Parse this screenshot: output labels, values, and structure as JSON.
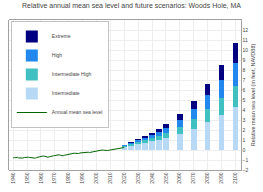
{
  "chart_data": {
    "type": "bar",
    "title": "Relative annual mean sea level and future scenarios: Woods Hole, MA",
    "ylabel": "Relative mean sea level (in feet, NAVD88)",
    "stacked": true,
    "x": [
      2020,
      2025,
      2030,
      2035,
      2040,
      2045,
      2050,
      2060,
      2070,
      2080,
      2090,
      2100
    ],
    "series": [
      {
        "name": "Intermediate",
        "color": "#b8d9f5",
        "values": [
          0.3,
          0.45,
          0.6,
          0.75,
          0.9,
          1.05,
          1.2,
          1.6,
          2.1,
          2.8,
          3.5,
          4.3
        ]
      },
      {
        "name": "Intermediate High",
        "color": "#40c0c0",
        "values": [
          0.1,
          0.15,
          0.2,
          0.25,
          0.35,
          0.4,
          0.5,
          0.7,
          1.0,
          1.3,
          1.7,
          2.1
        ]
      },
      {
        "name": "High",
        "color": "#2288ee",
        "values": [
          0.1,
          0.1,
          0.2,
          0.25,
          0.3,
          0.4,
          0.5,
          0.7,
          1.0,
          1.4,
          1.8,
          2.3
        ]
      },
      {
        "name": "Extreme",
        "color": "#000080",
        "values": [
          0.05,
          0.1,
          0.1,
          0.15,
          0.2,
          0.3,
          0.4,
          0.6,
          0.8,
          1.1,
          1.5,
          2.0
        ]
      },
      {
        "name": "Annual mean sea level",
        "type": "line",
        "color": "darkgreen",
        "x": [
          1940,
          1941,
          1942,
          1943,
          1944,
          1945,
          1946,
          1947,
          1948,
          1949,
          1950,
          1951,
          1952,
          1953,
          1954,
          1955,
          1956,
          1957,
          1958,
          1959,
          1960,
          1961,
          1962,
          1963,
          1964,
          1965,
          1966,
          1967,
          1968,
          1969,
          1970,
          1971,
          1972,
          1973,
          1974,
          1975,
          1976,
          1977,
          1978,
          1979,
          1980,
          1981,
          1982,
          1983,
          1984,
          1985,
          1986,
          1987,
          1988,
          1989,
          1990,
          1991,
          1992,
          1993,
          1994,
          1995,
          1996,
          1997,
          1998,
          1999,
          2000,
          2001,
          2002,
          2003,
          2004,
          2005,
          2006,
          2007,
          2008,
          2009,
          2010,
          2011,
          2012,
          2013,
          2014,
          2015,
          2016,
          2017,
          2018,
          2019,
          2020
        ],
        "values": [
          -0.8,
          -0.75,
          -0.78,
          -0.72,
          -0.8,
          -0.82,
          -0.85,
          -0.8,
          -0.75,
          -0.72,
          -0.68,
          -0.72,
          -0.75,
          -0.78,
          -0.8,
          -0.85,
          -0.82,
          -0.75,
          -0.7,
          -0.68,
          -0.65,
          -0.62,
          -0.6,
          -0.65,
          -0.68,
          -0.72,
          -0.68,
          -0.62,
          -0.6,
          -0.58,
          -0.55,
          -0.52,
          -0.5,
          -0.48,
          -0.52,
          -0.55,
          -0.58,
          -0.52,
          -0.48,
          -0.45,
          -0.42,
          -0.4,
          -0.38,
          -0.35,
          -0.32,
          -0.35,
          -0.38,
          -0.35,
          -0.3,
          -0.28,
          -0.25,
          -0.22,
          -0.2,
          -0.18,
          -0.22,
          -0.25,
          -0.22,
          -0.18,
          -0.15,
          -0.12,
          -0.1,
          -0.08,
          -0.05,
          -0.02,
          0.0,
          -0.02,
          -0.05,
          -0.08,
          -0.05,
          -0.02,
          0.0,
          0.02,
          0.05,
          0.08,
          0.1,
          0.12,
          0.15,
          0.17,
          0.19,
          0.22,
          0.25
        ]
      }
    ],
    "xlim": [
      1937,
      2104
    ],
    "xticks": [
      1940,
      1950,
      1960,
      1970,
      1980,
      1990,
      2000,
      2010,
      2020,
      2030,
      2040,
      2050,
      2060,
      2070,
      2080,
      2090,
      2100
    ],
    "ylim": [
      -2.0,
      13.0
    ],
    "yticks": [
      -2.0,
      -1.0,
      0.0,
      1.0,
      2.0,
      3.0,
      4.0,
      5.0,
      6.0,
      7.0,
      8.0,
      9.0,
      10.0,
      11.0,
      12.0
    ],
    "grid": true,
    "legend": "upper left"
  }
}
